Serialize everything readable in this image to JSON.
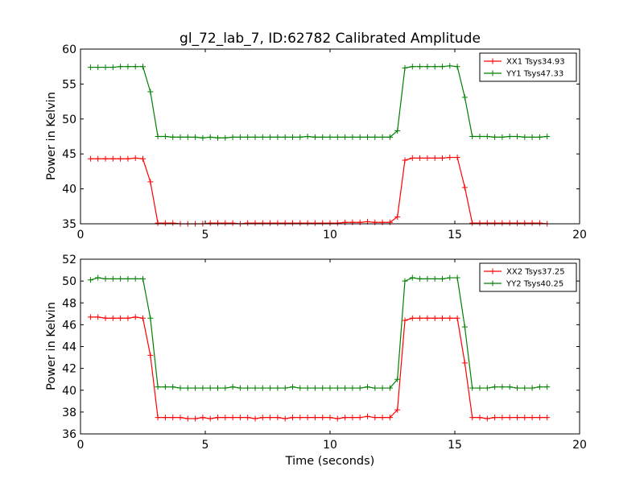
{
  "chart_data": [
    {
      "type": "line",
      "title": "gl_72_lab_7, ID:62782 Calibrated Amplitude",
      "xlabel": "",
      "ylabel": "Power in Kelvin",
      "xlim": [
        0,
        20
      ],
      "ylim": [
        35,
        60
      ],
      "xticks": [
        "0",
        "5",
        "10",
        "15",
        "20"
      ],
      "yticks": [
        "35",
        "40",
        "45",
        "50",
        "55",
        "60"
      ],
      "grid": false,
      "legend_position": "top-right",
      "x": [
        0.4,
        0.7,
        1.0,
        1.3,
        1.6,
        1.9,
        2.2,
        2.5,
        2.8,
        3.1,
        3.4,
        3.7,
        4.0,
        4.3,
        4.6,
        4.9,
        5.2,
        5.5,
        5.8,
        6.1,
        6.4,
        6.7,
        7.0,
        7.3,
        7.6,
        7.9,
        8.2,
        8.5,
        8.8,
        9.1,
        9.4,
        9.7,
        10.0,
        10.3,
        10.6,
        10.9,
        11.2,
        11.5,
        11.8,
        12.1,
        12.4,
        12.7,
        13.0,
        13.3,
        13.6,
        13.9,
        14.2,
        14.5,
        14.8,
        15.1,
        15.4,
        15.7,
        16.0,
        16.3,
        16.6,
        16.9,
        17.2,
        17.5,
        17.8,
        18.1,
        18.4,
        18.7
      ],
      "series": [
        {
          "name": "XX1 Tsys34.93",
          "color": "#ff0000",
          "values": [
            44.3,
            44.3,
            44.3,
            44.3,
            44.3,
            44.3,
            44.4,
            44.3,
            41.0,
            35.1,
            35.1,
            35.1,
            35.0,
            35.0,
            35.0,
            35.0,
            35.1,
            35.1,
            35.1,
            35.1,
            35.0,
            35.1,
            35.1,
            35.1,
            35.1,
            35.1,
            35.1,
            35.1,
            35.1,
            35.1,
            35.1,
            35.1,
            35.1,
            35.1,
            35.2,
            35.2,
            35.2,
            35.3,
            35.2,
            35.2,
            35.2,
            36.0,
            44.1,
            44.4,
            44.4,
            44.4,
            44.4,
            44.4,
            44.5,
            44.5,
            40.2,
            35.1,
            35.1,
            35.1,
            35.1,
            35.1,
            35.1,
            35.1,
            35.1,
            35.1,
            35.1,
            35.0
          ]
        },
        {
          "name": "YY1 Tsys47.33",
          "color": "#008000",
          "values": [
            57.4,
            57.4,
            57.4,
            57.4,
            57.5,
            57.5,
            57.5,
            57.5,
            53.9,
            47.5,
            47.5,
            47.4,
            47.4,
            47.4,
            47.4,
            47.3,
            47.4,
            47.3,
            47.3,
            47.4,
            47.4,
            47.4,
            47.4,
            47.4,
            47.4,
            47.4,
            47.4,
            47.4,
            47.4,
            47.5,
            47.4,
            47.4,
            47.4,
            47.4,
            47.4,
            47.4,
            47.4,
            47.4,
            47.4,
            47.4,
            47.4,
            48.3,
            57.3,
            57.5,
            57.5,
            57.5,
            57.5,
            57.5,
            57.6,
            57.5,
            53.1,
            47.5,
            47.5,
            47.5,
            47.4,
            47.4,
            47.5,
            47.5,
            47.4,
            47.4,
            47.4,
            47.5
          ]
        }
      ]
    },
    {
      "type": "line",
      "title": "",
      "xlabel": "Time (seconds)",
      "ylabel": "Power in Kelvin",
      "xlim": [
        0,
        20
      ],
      "ylim": [
        36,
        52
      ],
      "xticks": [
        "0",
        "5",
        "10",
        "15",
        "20"
      ],
      "yticks": [
        "36",
        "38",
        "40",
        "42",
        "44",
        "46",
        "48",
        "50",
        "52"
      ],
      "grid": false,
      "legend_position": "top-right",
      "x": [
        0.4,
        0.7,
        1.0,
        1.3,
        1.6,
        1.9,
        2.2,
        2.5,
        2.8,
        3.1,
        3.4,
        3.7,
        4.0,
        4.3,
        4.6,
        4.9,
        5.2,
        5.5,
        5.8,
        6.1,
        6.4,
        6.7,
        7.0,
        7.3,
        7.6,
        7.9,
        8.2,
        8.5,
        8.8,
        9.1,
        9.4,
        9.7,
        10.0,
        10.3,
        10.6,
        10.9,
        11.2,
        11.5,
        11.8,
        12.1,
        12.4,
        12.7,
        13.0,
        13.3,
        13.6,
        13.9,
        14.2,
        14.5,
        14.8,
        15.1,
        15.4,
        15.7,
        16.0,
        16.3,
        16.6,
        16.9,
        17.2,
        17.5,
        17.8,
        18.1,
        18.4,
        18.7
      ],
      "series": [
        {
          "name": "XX2 Tsys37.25",
          "color": "#ff0000",
          "values": [
            46.7,
            46.7,
            46.6,
            46.6,
            46.6,
            46.6,
            46.7,
            46.6,
            43.2,
            37.5,
            37.5,
            37.5,
            37.5,
            37.4,
            37.4,
            37.5,
            37.4,
            37.5,
            37.5,
            37.5,
            37.5,
            37.5,
            37.4,
            37.5,
            37.5,
            37.5,
            37.4,
            37.5,
            37.5,
            37.5,
            37.5,
            37.5,
            37.5,
            37.4,
            37.5,
            37.5,
            37.5,
            37.6,
            37.5,
            37.5,
            37.5,
            38.2,
            46.4,
            46.6,
            46.6,
            46.6,
            46.6,
            46.6,
            46.6,
            46.6,
            42.5,
            37.5,
            37.5,
            37.4,
            37.5,
            37.5,
            37.5,
            37.5,
            37.5,
            37.5,
            37.5,
            37.5
          ]
        },
        {
          "name": "YY2 Tsys40.25",
          "color": "#008000",
          "values": [
            50.1,
            50.3,
            50.2,
            50.2,
            50.2,
            50.2,
            50.2,
            50.2,
            46.6,
            40.3,
            40.3,
            40.3,
            40.2,
            40.2,
            40.2,
            40.2,
            40.2,
            40.2,
            40.2,
            40.3,
            40.2,
            40.2,
            40.2,
            40.2,
            40.2,
            40.2,
            40.2,
            40.3,
            40.2,
            40.2,
            40.2,
            40.2,
            40.2,
            40.2,
            40.2,
            40.2,
            40.2,
            40.3,
            40.2,
            40.2,
            40.2,
            41.0,
            50.0,
            50.3,
            50.2,
            50.2,
            50.2,
            50.2,
            50.3,
            50.3,
            45.8,
            40.2,
            40.2,
            40.2,
            40.3,
            40.3,
            40.3,
            40.2,
            40.2,
            40.2,
            40.3,
            40.3
          ]
        }
      ]
    }
  ]
}
